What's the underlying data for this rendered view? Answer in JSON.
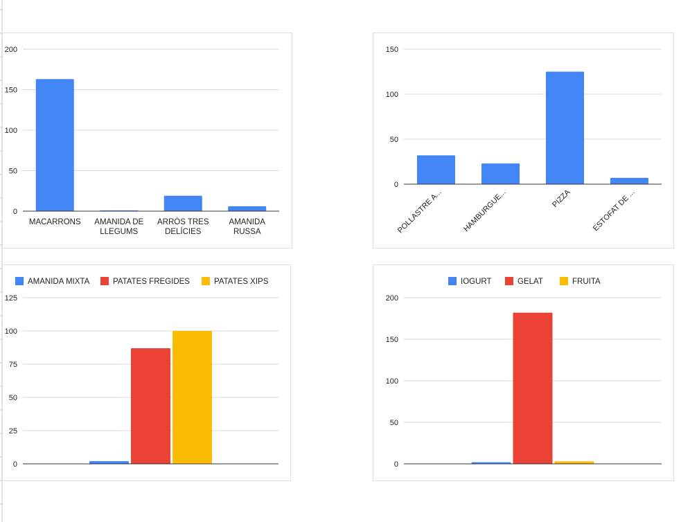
{
  "colors": {
    "blue": "#4285f4",
    "red": "#ea4335",
    "yellow": "#fbbc04",
    "grid": "#d9d9d9",
    "axis": "#333333"
  },
  "chart_data": [
    {
      "type": "bar",
      "title": "",
      "categories": [
        [
          "MACARRONS"
        ],
        [
          "AMANIDA DE",
          "LLEGUMS"
        ],
        [
          "ARRÒS TRES",
          "DELÍCIES"
        ],
        [
          "AMANIDA",
          "RUSSA"
        ]
      ],
      "series": [
        {
          "name": "",
          "values": [
            163,
            1,
            19,
            6
          ],
          "color": "#4285f4"
        }
      ],
      "yticks": [
        "0",
        "50",
        "100",
        "150",
        "200"
      ],
      "ylim": [
        0,
        200
      ],
      "grid": true,
      "legend": "none"
    },
    {
      "type": "bar",
      "title": "",
      "categories": [
        [
          "POLLASTRE A..."
        ],
        [
          "HAMBURGUE..."
        ],
        [
          "PIZZA"
        ],
        [
          "ESTOFAT DE ..."
        ]
      ],
      "series": [
        {
          "name": "",
          "values": [
            32,
            23,
            125,
            7
          ],
          "color": "#4285f4"
        }
      ],
      "yticks": [
        "0",
        "50",
        "100",
        "150"
      ],
      "ylim": [
        0,
        150
      ],
      "grid": true,
      "legend": "none",
      "xlabel_rotation": "-45deg"
    },
    {
      "type": "bar",
      "title": "",
      "categories": [
        [
          ""
        ]
      ],
      "series": [
        {
          "name": "AMANIDA MIXTA",
          "values": [
            2
          ],
          "color": "#4285f4"
        },
        {
          "name": "PATATES FREGIDES",
          "values": [
            87
          ],
          "color": "#ea4335"
        },
        {
          "name": "PATATES XIPS",
          "values": [
            100
          ],
          "color": "#fbbc04"
        }
      ],
      "yticks": [
        "0",
        "25",
        "50",
        "75",
        "100",
        "125"
      ],
      "ylim": [
        0,
        125
      ],
      "grid": true,
      "legend": "top"
    },
    {
      "type": "bar",
      "title": "",
      "categories": [
        [
          ""
        ]
      ],
      "series": [
        {
          "name": "IOGURT",
          "values": [
            2
          ],
          "color": "#4285f4"
        },
        {
          "name": "GELAT",
          "values": [
            182
          ],
          "color": "#ea4335"
        },
        {
          "name": "FRUITA",
          "values": [
            3
          ],
          "color": "#fbbc04"
        }
      ],
      "yticks": [
        "0",
        "50",
        "100",
        "150",
        "200"
      ],
      "ylim": [
        0,
        200
      ],
      "grid": true,
      "legend": "top"
    }
  ]
}
